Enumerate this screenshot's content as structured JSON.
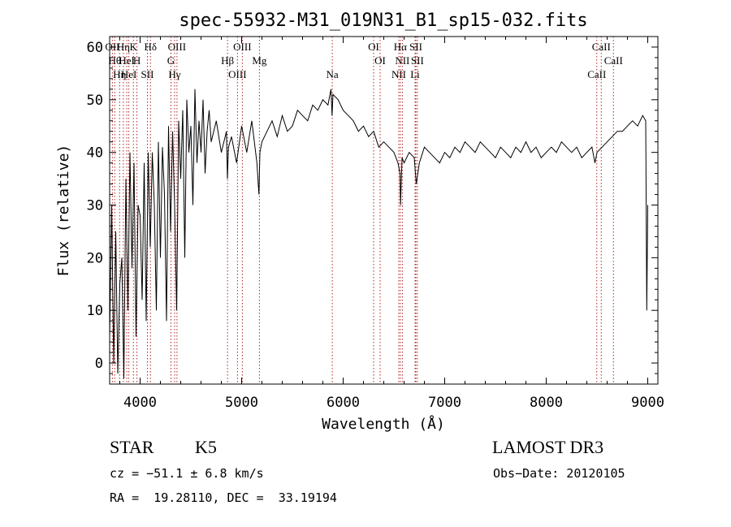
{
  "chart_data": {
    "type": "line",
    "title": "spec-55932-M31_019N31_B1_sp15-032.fits",
    "xlabel": "Wavelength (Å)",
    "ylabel": "Flux (relative)",
    "xlim": [
      3700,
      9100
    ],
    "ylim": [
      -4,
      62
    ],
    "xticks": [
      4000,
      5000,
      6000,
      7000,
      8000,
      9000
    ],
    "yticks": [
      0,
      10,
      20,
      30,
      40,
      50,
      60
    ],
    "grid": false,
    "series": [
      {
        "name": "spectrum",
        "x": [
          3700,
          3720,
          3740,
          3760,
          3780,
          3800,
          3820,
          3840,
          3860,
          3880,
          3900,
          3920,
          3940,
          3960,
          3980,
          4000,
          4020,
          4040,
          4060,
          4080,
          4100,
          4120,
          4140,
          4160,
          4180,
          4200,
          4220,
          4240,
          4260,
          4280,
          4300,
          4320,
          4340,
          4360,
          4380,
          4400,
          4420,
          4440,
          4460,
          4480,
          4500,
          4520,
          4540,
          4560,
          4580,
          4600,
          4620,
          4640,
          4660,
          4680,
          4700,
          4750,
          4800,
          4850,
          4860,
          4870,
          4900,
          4950,
          5000,
          5050,
          5100,
          5150,
          5170,
          5180,
          5200,
          5250,
          5300,
          5350,
          5400,
          5450,
          5500,
          5550,
          5600,
          5650,
          5700,
          5750,
          5800,
          5850,
          5880,
          5890,
          5900,
          5950,
          6000,
          6050,
          6100,
          6150,
          6200,
          6250,
          6300,
          6350,
          6400,
          6450,
          6500,
          6540,
          6560,
          6565,
          6580,
          6600,
          6650,
          6700,
          6720,
          6750,
          6800,
          6850,
          6900,
          6950,
          7000,
          7050,
          7100,
          7150,
          7200,
          7250,
          7300,
          7350,
          7400,
          7450,
          7500,
          7550,
          7600,
          7650,
          7700,
          7750,
          7800,
          7850,
          7900,
          7950,
          8000,
          8050,
          8100,
          8150,
          8200,
          8250,
          8300,
          8350,
          8400,
          8450,
          8480,
          8500,
          8550,
          8600,
          8650,
          8700,
          8750,
          8800,
          8850,
          8900,
          8950,
          8980,
          8990,
          9000
        ],
        "values": [
          5,
          30,
          0,
          25,
          -2,
          15,
          20,
          -3,
          35,
          10,
          40,
          18,
          38,
          5,
          30,
          28,
          12,
          38,
          8,
          40,
          22,
          40,
          30,
          10,
          42,
          20,
          41,
          32,
          8,
          45,
          25,
          44,
          30,
          10,
          46,
          35,
          48,
          20,
          50,
          40,
          45,
          30,
          52,
          38,
          46,
          40,
          50,
          36,
          44,
          48,
          42,
          46,
          40,
          44,
          35,
          41,
          43,
          38,
          45,
          40,
          46,
          38,
          32,
          40,
          42,
          44,
          46,
          43,
          47,
          44,
          45,
          48,
          47,
          46,
          49,
          48,
          50,
          49,
          52,
          47,
          51,
          50,
          48,
          47,
          46,
          44,
          45,
          43,
          44,
          41,
          42,
          41,
          40,
          38,
          36,
          30,
          39,
          38,
          40,
          39,
          34,
          38,
          41,
          40,
          39,
          38,
          40,
          39,
          41,
          40,
          42,
          41,
          40,
          42,
          41,
          40,
          39,
          41,
          40,
          39,
          41,
          40,
          42,
          40,
          41,
          39,
          40,
          41,
          40,
          42,
          41,
          40,
          41,
          39,
          40,
          41,
          38,
          40,
          41,
          42,
          43,
          44,
          44,
          45,
          46,
          45,
          47,
          46,
          10,
          30
        ]
      }
    ],
    "line_markers": [
      {
        "wl": 3727,
        "label": "OII"
      },
      {
        "wl": 3750,
        "label": "Hθ"
      },
      {
        "wl": 3798,
        "label": "Hη"
      },
      {
        "wl": 3835,
        "label": "Hη"
      },
      {
        "wl": 3869,
        "label": "HeI"
      },
      {
        "wl": 3889,
        "label": "HeI"
      },
      {
        "wl": 3934,
        "label": "K"
      },
      {
        "wl": 3969,
        "label": "H"
      },
      {
        "wl": 4072,
        "label": "SII"
      },
      {
        "wl": 4102,
        "label": "Hδ"
      },
      {
        "wl": 4304,
        "label": "G"
      },
      {
        "wl": 4340,
        "label": "Hγ"
      },
      {
        "wl": 4363,
        "label": "OIII"
      },
      {
        "wl": 4861,
        "label": "Hβ"
      },
      {
        "wl": 4959,
        "label": "OIII"
      },
      {
        "wl": 5007,
        "label": "OIII"
      },
      {
        "wl": 5175,
        "label": "Mg"
      },
      {
        "wl": 5893,
        "label": "Na"
      },
      {
        "wl": 6300,
        "label": "OI"
      },
      {
        "wl": 6364,
        "label": "OI"
      },
      {
        "wl": 6548,
        "label": "NII"
      },
      {
        "wl": 6563,
        "label": "Hα"
      },
      {
        "wl": 6583,
        "label": "NII"
      },
      {
        "wl": 6708,
        "label": "Li"
      },
      {
        "wl": 6716,
        "label": "SII"
      },
      {
        "wl": 6731,
        "label": "SII"
      },
      {
        "wl": 8498,
        "label": "CaII"
      },
      {
        "wl": 8542,
        "label": "CaII"
      },
      {
        "wl": 8662,
        "label": "CaII"
      }
    ]
  },
  "info": {
    "class": "STAR",
    "subclass": "K5",
    "survey": "LAMOST DR3",
    "cz": "cz = −51.1 ± 6.8 km/s",
    "obs_date": "Obs−Date: 20120105",
    "coords": "RA =  19.28110, DEC =  33.19194"
  },
  "colors": {
    "marker": "#b22222",
    "spectrum": "#000000",
    "axes": "#000000"
  }
}
